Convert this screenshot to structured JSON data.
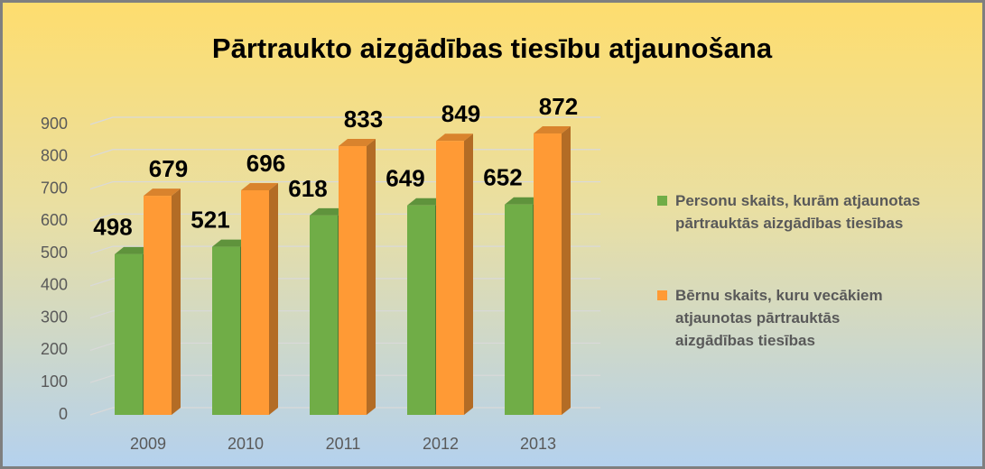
{
  "chart_data": {
    "type": "bar3d",
    "title": "Pārtraukto aizgādības tiesību atjaunošana",
    "categories": [
      "2009",
      "2010",
      "2011",
      "2012",
      "2013"
    ],
    "series": [
      {
        "name": "Personu skaits, kurām atjaunotas pārtrauktās aizgādības tiesības",
        "color": "#70ad47",
        "values": [
          498,
          521,
          618,
          649,
          652
        ]
      },
      {
        "name": "Bērnu skaits, kuru vecākiem atjaunotas pārtrauktās aizgādības tiesības",
        "color": "#ff9a35",
        "values": [
          679,
          696,
          833,
          849,
          872
        ]
      }
    ],
    "ylim": [
      0,
      900
    ],
    "yticks": [
      0,
      100,
      200,
      300,
      400,
      500,
      600,
      700,
      800,
      900
    ],
    "grid": true,
    "legend": "right"
  }
}
